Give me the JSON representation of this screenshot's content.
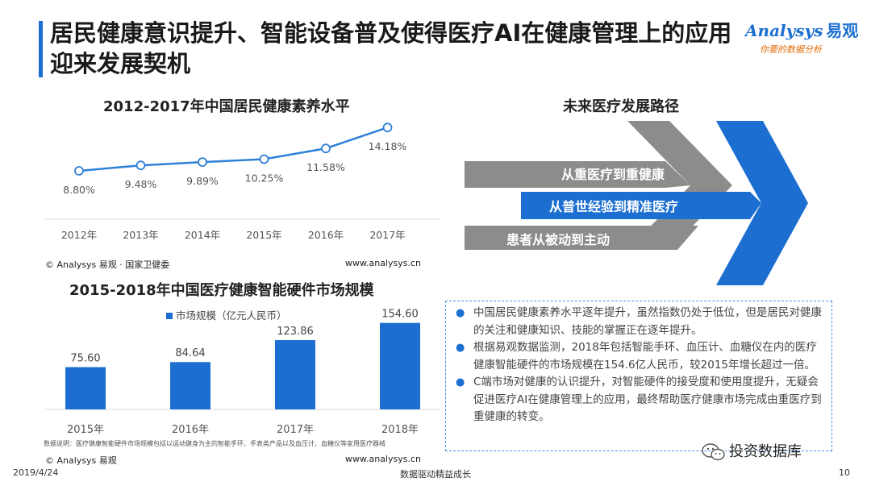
{
  "header": {
    "title": "居民健康意识提升、智能设备普及使得医疗AI在健康管理上的应用迎来发展契机"
  },
  "logo": {
    "brand": "nalysys",
    "brand_initial": "A",
    "brand_cn": "易观",
    "tagline": "你要的数据分析"
  },
  "line_section": {
    "title": "2012-2017年中国居民健康素养水平",
    "source_left": "© Analysys 易观 · 国家卫健委",
    "source_right": "www.analysys.cn"
  },
  "bar_section": {
    "title": "2015-2018年中国医疗健康智能硬件市场规模",
    "source_left": "© Analysys 易观",
    "source_right": "www.analysys.cn",
    "footnote": "数据说明：医疗健康智能硬件市场规模包括以运动健身为主的智能手环、手表类产品以及血压计、血糖仪等家用医疗器械"
  },
  "path_section": {
    "title": "未来医疗发展路径",
    "arrows": [
      "从重医疗到重健康",
      "从普世经验到精准医疗",
      "患者从被动到主动"
    ]
  },
  "notes": [
    "中国居民健康素养水平逐年提升，虽然指数仍处于低位，但是居民对健康的关注和健康知识、技能的掌握正在逐年提升。",
    "根据易观数据监测，2018年包括智能手环、血压计、血糖仪在内的医疗健康智能硬件的市场规模在154.6亿人民币，较2015年增长超过一倍。",
    "C端市场对健康的认识提升，对智能硬件的接受度和使用度提升，无疑会促进医疗AI在健康管理上的应用，最终帮助医疗健康市场完成由重医疗到重健康的转变。"
  ],
  "footer": {
    "date": "2019/4/24",
    "slogan": "数据驱动精益成长",
    "page": "10",
    "wechat": "投资数据库"
  },
  "colors": {
    "accent": "#1c6fd1",
    "arrow_gray": "#8c8c8c",
    "line": "#2f80d8"
  },
  "chart_data": [
    {
      "type": "line",
      "title": "2012-2017年中国居民健康素养水平",
      "categories": [
        "2012年",
        "2013年",
        "2014年",
        "2015年",
        "2016年",
        "2017年"
      ],
      "values": [
        8.8,
        9.48,
        9.89,
        10.25,
        11.58,
        14.18
      ],
      "labels": [
        "8.80%",
        "9.48%",
        "9.89%",
        "10.25%",
        "11.58%",
        "14.18%"
      ],
      "ylim": [
        7,
        15
      ],
      "grid": false,
      "legend": "none"
    },
    {
      "type": "bar",
      "title": "2015-2018年中国医疗健康智能硬件市场规模",
      "categories": [
        "2015年",
        "2016年",
        "2017年",
        "2018年"
      ],
      "series": [
        {
          "name": "市场规模（亿元人民币）",
          "values": [
            75.6,
            84.64,
            123.86,
            154.6
          ]
        }
      ],
      "labels": [
        "75.60",
        "84.64",
        "123.86",
        "154.60"
      ],
      "ylim": [
        0,
        170
      ],
      "grid": false,
      "legend": "top-left"
    }
  ]
}
